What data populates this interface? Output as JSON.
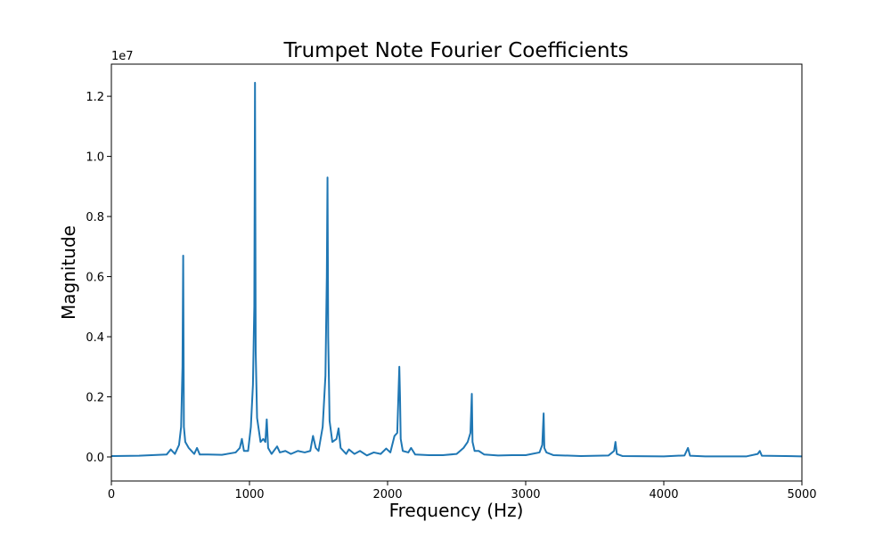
{
  "chart_data": {
    "type": "line",
    "title": "Trumpet Note Fourier Coefficients",
    "x_label": "Frequency (Hz)",
    "y_label": "Magnitude",
    "y_offset_label": "1e7",
    "xlim": [
      0,
      5000
    ],
    "xticks": [
      0,
      1000,
      2000,
      3000,
      4000,
      5000
    ],
    "ylim": [
      -0.08,
      1.307
    ],
    "yticks": [
      {
        "value": 0,
        "label": "0.0"
      },
      0.2,
      0.4,
      0.6,
      0.8,
      {
        "value": 1,
        "label": "1.0"
      },
      1.2
    ],
    "grid": false,
    "series": [
      {
        "color": "#1f77b4",
        "x": [
          0,
          200,
          400,
          430,
          460,
          490,
          505,
          515,
          520,
          525,
          535,
          560,
          600,
          620,
          640,
          700,
          800,
          900,
          930,
          945,
          960,
          990,
          1010,
          1025,
          1035,
          1040,
          1045,
          1055,
          1080,
          1100,
          1115,
          1125,
          1135,
          1160,
          1200,
          1220,
          1260,
          1300,
          1350,
          1400,
          1440,
          1460,
          1480,
          1500,
          1530,
          1550,
          1560,
          1565,
          1570,
          1580,
          1600,
          1630,
          1645,
          1660,
          1700,
          1720,
          1760,
          1800,
          1850,
          1900,
          1950,
          1990,
          2020,
          2050,
          2070,
          2085,
          2090,
          2095,
          2110,
          2150,
          2170,
          2200,
          2300,
          2400,
          2500,
          2550,
          2580,
          2600,
          2610,
          2615,
          2630,
          2660,
          2700,
          2800,
          2900,
          3000,
          3100,
          3120,
          3130,
          3135,
          3150,
          3200,
          3400,
          3600,
          3640,
          3650,
          3660,
          3700,
          4000,
          4150,
          4175,
          4190,
          4300,
          4600,
          4680,
          4695,
          4710,
          5000
        ],
        "values": [
          0.003,
          0.004,
          0.008,
          0.025,
          0.01,
          0.04,
          0.1,
          0.3,
          0.67,
          0.1,
          0.05,
          0.03,
          0.01,
          0.03,
          0.008,
          0.008,
          0.007,
          0.015,
          0.03,
          0.06,
          0.02,
          0.02,
          0.1,
          0.24,
          0.5,
          1.245,
          0.35,
          0.13,
          0.05,
          0.06,
          0.05,
          0.125,
          0.03,
          0.01,
          0.035,
          0.015,
          0.02,
          0.01,
          0.02,
          0.015,
          0.02,
          0.07,
          0.03,
          0.02,
          0.1,
          0.27,
          0.6,
          0.93,
          0.4,
          0.12,
          0.05,
          0.06,
          0.095,
          0.03,
          0.01,
          0.025,
          0.01,
          0.02,
          0.005,
          0.015,
          0.01,
          0.028,
          0.015,
          0.07,
          0.08,
          0.3,
          0.2,
          0.06,
          0.02,
          0.015,
          0.03,
          0.008,
          0.006,
          0.006,
          0.01,
          0.03,
          0.05,
          0.08,
          0.21,
          0.05,
          0.02,
          0.02,
          0.008,
          0.005,
          0.006,
          0.006,
          0.015,
          0.04,
          0.145,
          0.03,
          0.015,
          0.006,
          0.003,
          0.005,
          0.02,
          0.05,
          0.01,
          0.003,
          0.002,
          0.005,
          0.03,
          0.004,
          0.002,
          0.002,
          0.01,
          0.02,
          0.004,
          0.002
        ]
      }
    ]
  }
}
